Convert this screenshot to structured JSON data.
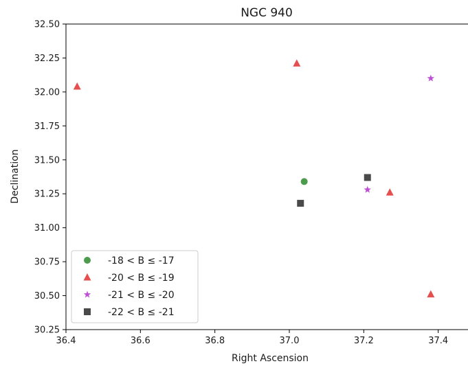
{
  "chart_data": {
    "type": "scatter",
    "title": "NGC 940",
    "xlabel": "Right Ascension",
    "ylabel": "Declination",
    "xlim": [
      36.4,
      37.48
    ],
    "ylim": [
      30.25,
      32.5
    ],
    "xticks": [
      36.4,
      36.6,
      36.8,
      37.0,
      37.2,
      37.4
    ],
    "xtick_labels": [
      "36.4",
      "36.6",
      "36.8",
      "37.0",
      "37.2",
      "37.4"
    ],
    "yticks": [
      30.25,
      30.5,
      30.75,
      31.0,
      31.25,
      31.5,
      31.75,
      32.0,
      32.25,
      32.5
    ],
    "ytick_labels": [
      "30.25",
      "30.50",
      "30.75",
      "31.00",
      "31.25",
      "31.50",
      "31.75",
      "32.00",
      "32.25",
      "32.50"
    ],
    "grid": false,
    "legend_position": "lower-left",
    "series": [
      {
        "name": "-18 < B ≤ -17",
        "marker": "circle",
        "color": "#2e8b2e",
        "points": [
          {
            "x": 37.04,
            "y": 31.34
          }
        ]
      },
      {
        "name": "-20 < B ≤ -19",
        "marker": "triangle",
        "color": "#e03030",
        "points": [
          {
            "x": 36.43,
            "y": 32.04
          },
          {
            "x": 37.02,
            "y": 32.21
          },
          {
            "x": 37.27,
            "y": 31.26
          },
          {
            "x": 37.38,
            "y": 30.51
          }
        ]
      },
      {
        "name": "-21 < B ≤ -20",
        "marker": "star",
        "color": "#b233cc",
        "points": [
          {
            "x": 37.38,
            "y": 32.1
          },
          {
            "x": 37.21,
            "y": 31.28
          }
        ]
      },
      {
        "name": "-22 < B ≤ -21",
        "marker": "square",
        "color": "#2a2a2a",
        "points": [
          {
            "x": 37.21,
            "y": 31.37
          },
          {
            "x": 37.03,
            "y": 31.18
          }
        ]
      }
    ]
  }
}
